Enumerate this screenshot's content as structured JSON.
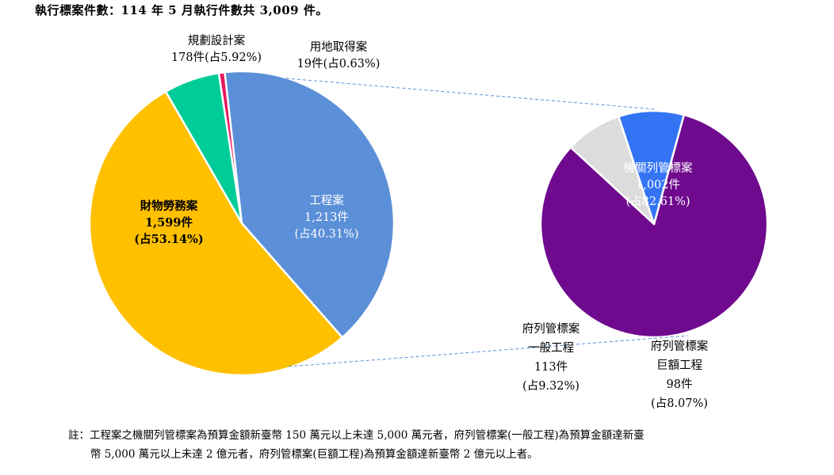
{
  "title": "執行標案件數：114 年 5 月執行件數共 3,009 件。",
  "chart_data": [
    {
      "type": "pie",
      "total": 3009,
      "slices": [
        {
          "name": "規劃設計案",
          "count_label": "178件",
          "pct_label": "(占5.92%)",
          "value": 178,
          "percent": 5.92,
          "color": "#00CC99"
        },
        {
          "name": "用地取得案",
          "count_label": "19件",
          "pct_label": "(占0.63%)",
          "value": 19,
          "percent": 0.63,
          "color": "#E8175D"
        },
        {
          "name": "工程案",
          "count_label": "1,213件",
          "pct_label": "(占40.31%)",
          "value": 1213,
          "percent": 40.31,
          "color": "#5B8FD8"
        },
        {
          "name": "財物勞務案",
          "count_label": "1,599件",
          "pct_label": "(占53.14%)",
          "value": 1599,
          "percent": 53.14,
          "color": "#FFC000"
        }
      ]
    },
    {
      "type": "pie",
      "total": 1213,
      "slices": [
        {
          "name": "機關列管標案",
          "count_label": "1,002件",
          "pct_label": "(占82.61%)",
          "value": 1002,
          "percent": 82.61,
          "color": "#6F0A8E"
        },
        {
          "name_lines": [
            "府列管標案",
            "一般工程"
          ],
          "count_label": "113件",
          "pct_label": "(占9.32%)",
          "value": 113,
          "percent": 9.32,
          "color": "#3374F5"
        },
        {
          "name_lines": [
            "府列管標案",
            "巨額工程"
          ],
          "count_label": "98件",
          "pct_label": "(占8.07%)",
          "value": 98,
          "percent": 8.07,
          "color": "#DCDCDC"
        }
      ]
    }
  ],
  "note": {
    "line1": "註：工程案之機關列管標案為預算金額新臺幣 150 萬元以上未達 5,000 萬元者，府列管標案(一般工程)為預算金額達新臺",
    "line2": "幣 5,000 萬元以上未達 2 億元者，府列管標案(巨額工程)為預算金額達新臺幣 2 億元以上者。"
  }
}
